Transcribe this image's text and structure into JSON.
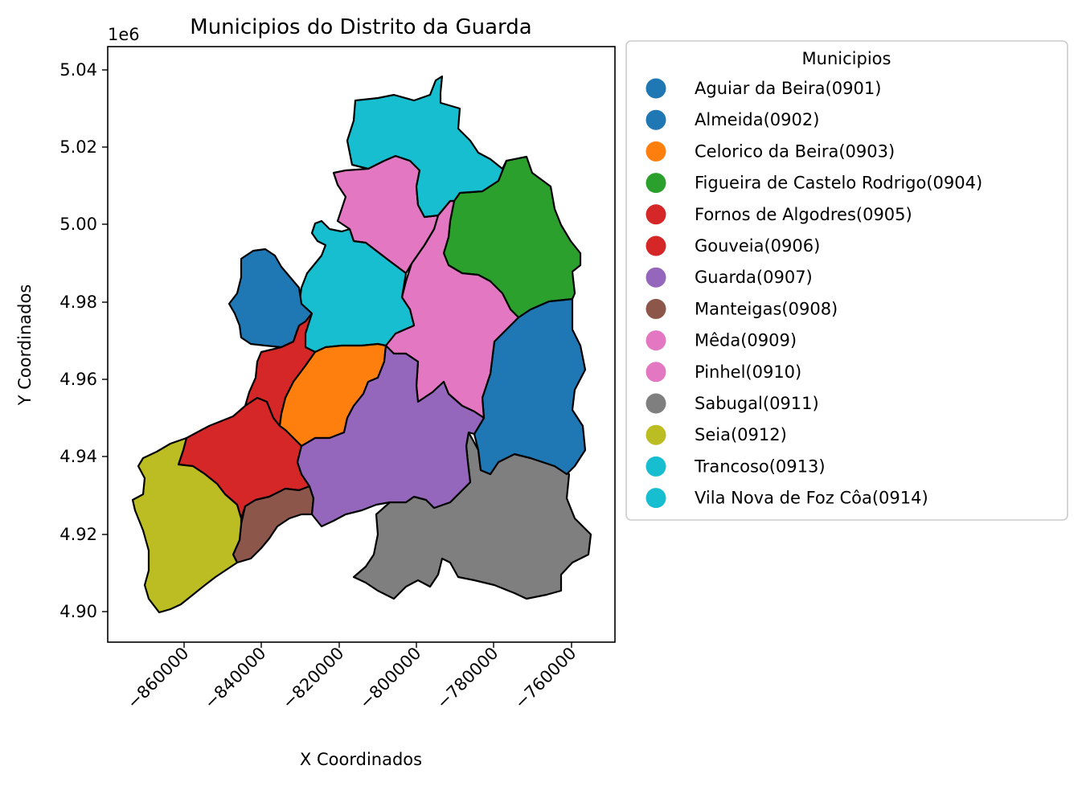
{
  "chart_data": {
    "type": "map",
    "title": "Municipios do Distrito da Guarda",
    "xlabel": "X Coordinados",
    "ylabel": "Y Coordinados",
    "y_offset_text": "1e6",
    "x_ticks": [
      "−860000",
      "−840000",
      "−820000",
      "−800000",
      "−780000",
      "−760000"
    ],
    "y_ticks": [
      "4.90",
      "4.92",
      "4.94",
      "4.96",
      "4.98",
      "5.00",
      "5.02",
      "5.04"
    ],
    "legend": {
      "title": "Municipios",
      "placement": "outside upper right",
      "entries": [
        {
          "label": "Aguiar da Beira(0901)",
          "color": "#1f77b4"
        },
        {
          "label": "Almeida(0902)",
          "color": "#1f77b4"
        },
        {
          "label": "Celorico da Beira(0903)",
          "color": "#ff7f0e"
        },
        {
          "label": "Figueira de Castelo Rodrigo(0904)",
          "color": "#2ca02c"
        },
        {
          "label": "Fornos de Algodres(0905)",
          "color": "#d62728"
        },
        {
          "label": "Gouveia(0906)",
          "color": "#d62728"
        },
        {
          "label": "Guarda(0907)",
          "color": "#9467bd"
        },
        {
          "label": "Manteigas(0908)",
          "color": "#8c564b"
        },
        {
          "label": "Mêda(0909)",
          "color": "#e377c2"
        },
        {
          "label": "Pinhel(0910)",
          "color": "#e377c2"
        },
        {
          "label": "Sabugal(0911)",
          "color": "#7f7f7f"
        },
        {
          "label": "Seia(0912)",
          "color": "#bcbd22"
        },
        {
          "label": "Trancoso(0913)",
          "color": "#17becf"
        },
        {
          "label": "Vila Nova de Foz Côa(0914)",
          "color": "#17becf"
        }
      ]
    },
    "regions": [
      {
        "name": "Aguiar da Beira",
        "color": "#1f77b4"
      },
      {
        "name": "Almeida",
        "color": "#1f77b4"
      },
      {
        "name": "Celorico da Beira",
        "color": "#ff7f0e"
      },
      {
        "name": "Figueira de Castelo Rodrigo",
        "color": "#2ca02c"
      },
      {
        "name": "Fornos de Algodres",
        "color": "#d62728"
      },
      {
        "name": "Gouveia",
        "color": "#d62728"
      },
      {
        "name": "Guarda",
        "color": "#9467bd"
      },
      {
        "name": "Manteigas",
        "color": "#8c564b"
      },
      {
        "name": "Mêda",
        "color": "#e377c2"
      },
      {
        "name": "Pinhel",
        "color": "#e377c2"
      },
      {
        "name": "Sabugal",
        "color": "#7f7f7f"
      },
      {
        "name": "Seia",
        "color": "#bcbd22"
      },
      {
        "name": "Trancoso",
        "color": "#17becf"
      },
      {
        "name": "Vila Nova de Foz Côa",
        "color": "#17becf"
      }
    ]
  }
}
